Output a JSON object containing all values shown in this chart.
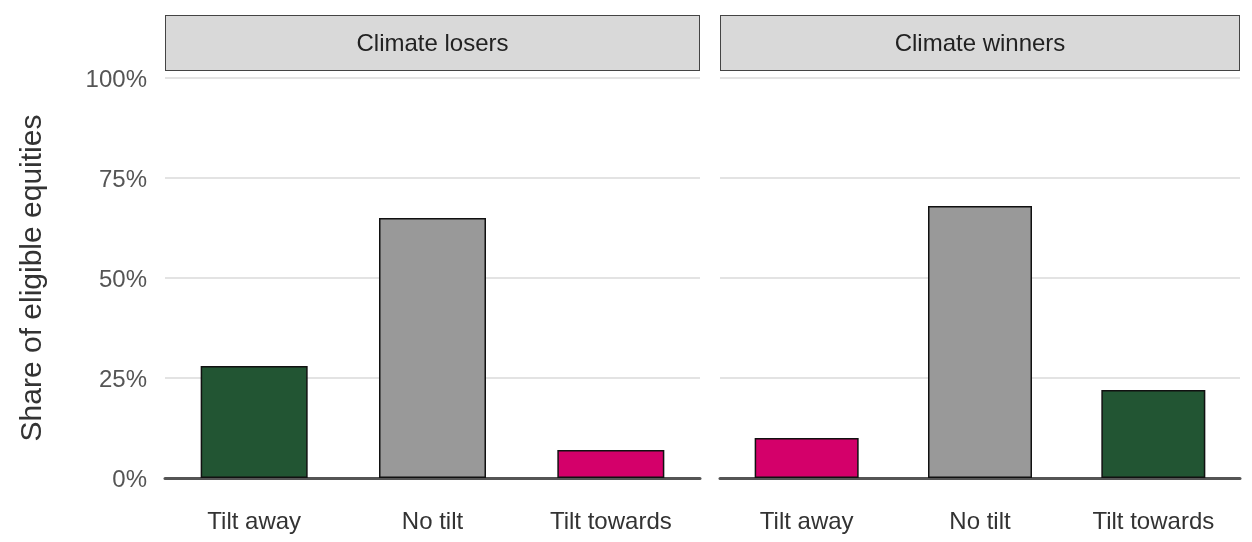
{
  "chart_data": [
    {
      "type": "bar",
      "title": "Climate losers",
      "ylabel": "Share of eligible equities",
      "categories": [
        "Tilt away",
        "No tilt",
        "Tilt towards"
      ],
      "values": [
        28,
        65,
        7
      ],
      "colors": [
        "#225533",
        "#999999",
        "#d4006a"
      ],
      "ylim": [
        0,
        100
      ],
      "yticks": [
        {
          "value": 0,
          "label": "0%"
        },
        {
          "value": 25,
          "label": "25%"
        },
        {
          "value": 50,
          "label": "50%"
        },
        {
          "value": 75,
          "label": "75%"
        },
        {
          "value": 100,
          "label": "100%"
        }
      ],
      "grid": "y"
    },
    {
      "type": "bar",
      "title": "Climate winners",
      "categories": [
        "Tilt away",
        "No tilt",
        "Tilt towards"
      ],
      "values": [
        10,
        68,
        22
      ],
      "colors": [
        "#d4006a",
        "#999999",
        "#225533"
      ],
      "ylim": [
        0,
        100
      ],
      "yticks": [
        {
          "value": 0,
          "label": null
        },
        {
          "value": 25,
          "label": null
        },
        {
          "value": 50,
          "label": null
        },
        {
          "value": 75,
          "label": null
        },
        {
          "value": 100,
          "label": null
        }
      ],
      "grid": "y",
      "tick_labels": "x"
    }
  ]
}
